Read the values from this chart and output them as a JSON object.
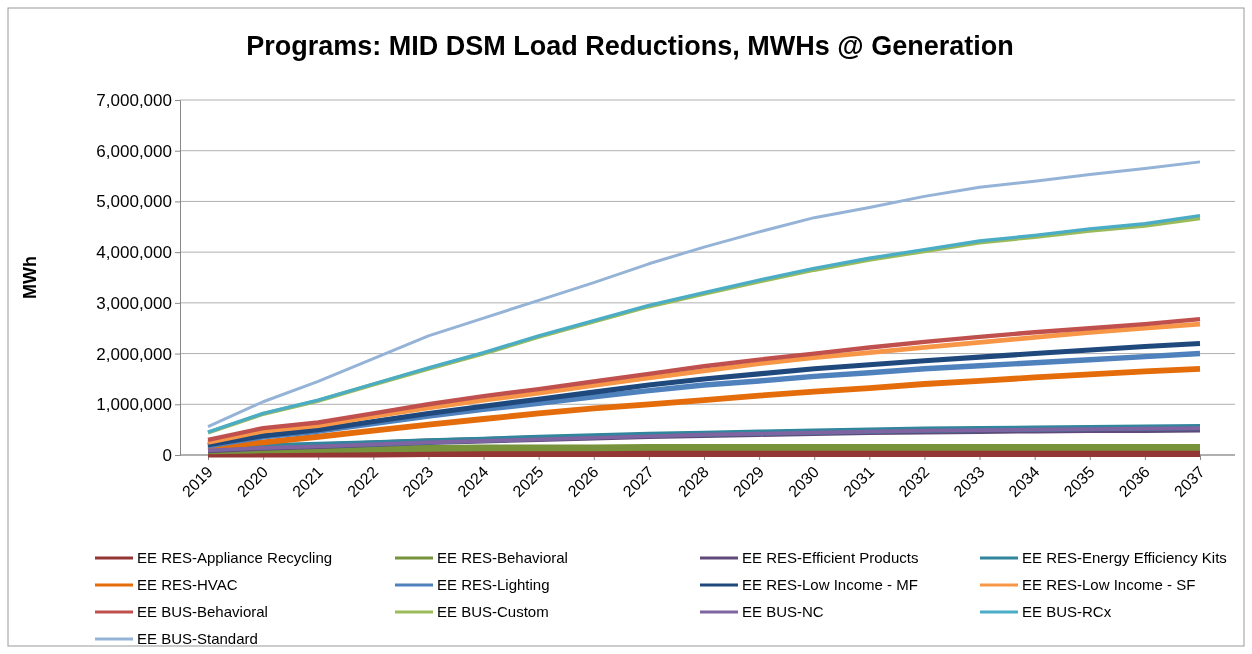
{
  "chart_data": {
    "type": "line",
    "title": "Programs:  MID DSM Load Reductions, MWHs @ Generation",
    "ylabel": "MWh",
    "categories": [
      "2019",
      "2020",
      "2021",
      "2022",
      "2023",
      "2024",
      "2025",
      "2026",
      "2027",
      "2028",
      "2029",
      "2030",
      "2031",
      "2032",
      "2033",
      "2034",
      "2035",
      "2036",
      "2037"
    ],
    "ylim": [
      0,
      7000000
    ],
    "yticks": [
      {
        "value": 0,
        "label": "0"
      },
      {
        "value": 1000000,
        "label": "1,000,000"
      },
      {
        "value": 2000000,
        "label": "2,000,000"
      },
      {
        "value": 3000000,
        "label": "3,000,000"
      },
      {
        "value": 4000000,
        "label": "4,000,000"
      },
      {
        "value": 5000000,
        "label": "5,000,000"
      },
      {
        "value": 6000000,
        "label": "6,000,000"
      },
      {
        "value": 7000000,
        "label": "7,000,000"
      }
    ],
    "grid": "y",
    "legend": "bottom",
    "marker": "none",
    "line_style": "solid",
    "series": [
      {
        "name": "EE RES-Appliance Recycling",
        "color": "#943634",
        "values": [
          20000,
          20000,
          20000,
          20000,
          30000,
          30000,
          30000,
          30000,
          30000,
          30000,
          30000,
          30000,
          30000,
          30000,
          30000,
          30000,
          30000,
          30000,
          30000
        ]
      },
      {
        "name": "EE RES-Behavioral",
        "color": "#77933c",
        "values": [
          80000,
          100000,
          110000,
          120000,
          130000,
          140000,
          140000,
          140000,
          150000,
          150000,
          150000,
          150000,
          150000,
          150000,
          150000,
          150000,
          150000,
          150000,
          150000
        ]
      },
      {
        "name": "EE RES-Efficient Products",
        "color": "#604a7b",
        "values": [
          100000,
          150000,
          180000,
          220000,
          260000,
          290000,
          320000,
          350000,
          380000,
          400000,
          420000,
          440000,
          460000,
          470000,
          480000,
          490000,
          500000,
          500000,
          510000
        ]
      },
      {
        "name": "EE RES-Energy Efficiency Kits",
        "color": "#31859c",
        "values": [
          130000,
          170000,
          200000,
          230000,
          270000,
          300000,
          340000,
          370000,
          400000,
          420000,
          440000,
          460000,
          480000,
          500000,
          510000,
          520000,
          530000,
          540000,
          550000
        ]
      },
      {
        "name": "EE RES-HVAC",
        "color": "#e46c0a",
        "values": [
          150000,
          250000,
          360000,
          480000,
          600000,
          710000,
          820000,
          920000,
          1000000,
          1080000,
          1170000,
          1250000,
          1320000,
          1400000,
          1460000,
          1530000,
          1590000,
          1650000,
          1700000
        ]
      },
      {
        "name": "EE RES-Lighting",
        "color": "#4f81bd",
        "values": [
          180000,
          360000,
          470000,
          620000,
          770000,
          900000,
          1020000,
          1150000,
          1270000,
          1380000,
          1460000,
          1550000,
          1620000,
          1700000,
          1760000,
          1820000,
          1880000,
          1940000,
          2000000
        ]
      },
      {
        "name": "EE RES-Low Income - MF",
        "color": "#1f497d",
        "values": [
          200000,
          380000,
          500000,
          660000,
          820000,
          960000,
          1100000,
          1240000,
          1380000,
          1500000,
          1600000,
          1700000,
          1780000,
          1860000,
          1930000,
          2000000,
          2070000,
          2140000,
          2200000
        ]
      },
      {
        "name": "EE RES-Low Income - SF",
        "color": "#f79646",
        "values": [
          250000,
          470000,
          580000,
          760000,
          930000,
          1080000,
          1220000,
          1370000,
          1520000,
          1660000,
          1800000,
          1920000,
          2020000,
          2120000,
          2220000,
          2320000,
          2420000,
          2500000,
          2580000
        ]
      },
      {
        "name": "EE BUS-Behavioral",
        "color": "#c0504d",
        "values": [
          300000,
          530000,
          640000,
          820000,
          1000000,
          1160000,
          1300000,
          1450000,
          1600000,
          1750000,
          1880000,
          2000000,
          2120000,
          2230000,
          2330000,
          2420000,
          2500000,
          2580000,
          2680000
        ]
      },
      {
        "name": "EE BUS-Custom",
        "color": "#9bbb59",
        "values": [
          440000,
          810000,
          1070000,
          1390000,
          1700000,
          2000000,
          2330000,
          2630000,
          2930000,
          3180000,
          3420000,
          3650000,
          3850000,
          4020000,
          4190000,
          4300000,
          4420000,
          4520000,
          4670000
        ]
      },
      {
        "name": "EE BUS-NC",
        "color": "#8064a2",
        "values": [
          90000,
          140000,
          170000,
          210000,
          250000,
          280000,
          310000,
          340000,
          370000,
          400000,
          420000,
          440000,
          460000,
          480000,
          490000,
          500000,
          510000,
          520000,
          530000
        ]
      },
      {
        "name": "EE BUS-RCx",
        "color": "#4bacc6",
        "values": [
          450000,
          820000,
          1080000,
          1400000,
          1720000,
          2020000,
          2350000,
          2650000,
          2950000,
          3200000,
          3450000,
          3680000,
          3880000,
          4050000,
          4220000,
          4330000,
          4460000,
          4560000,
          4720000
        ]
      },
      {
        "name": "EE BUS-Standard",
        "color": "#95b3d7",
        "values": [
          560000,
          1050000,
          1450000,
          1900000,
          2350000,
          2700000,
          3050000,
          3400000,
          3770000,
          4100000,
          4400000,
          4680000,
          4880000,
          5100000,
          5280000,
          5400000,
          5530000,
          5650000,
          5780000
        ]
      }
    ]
  }
}
